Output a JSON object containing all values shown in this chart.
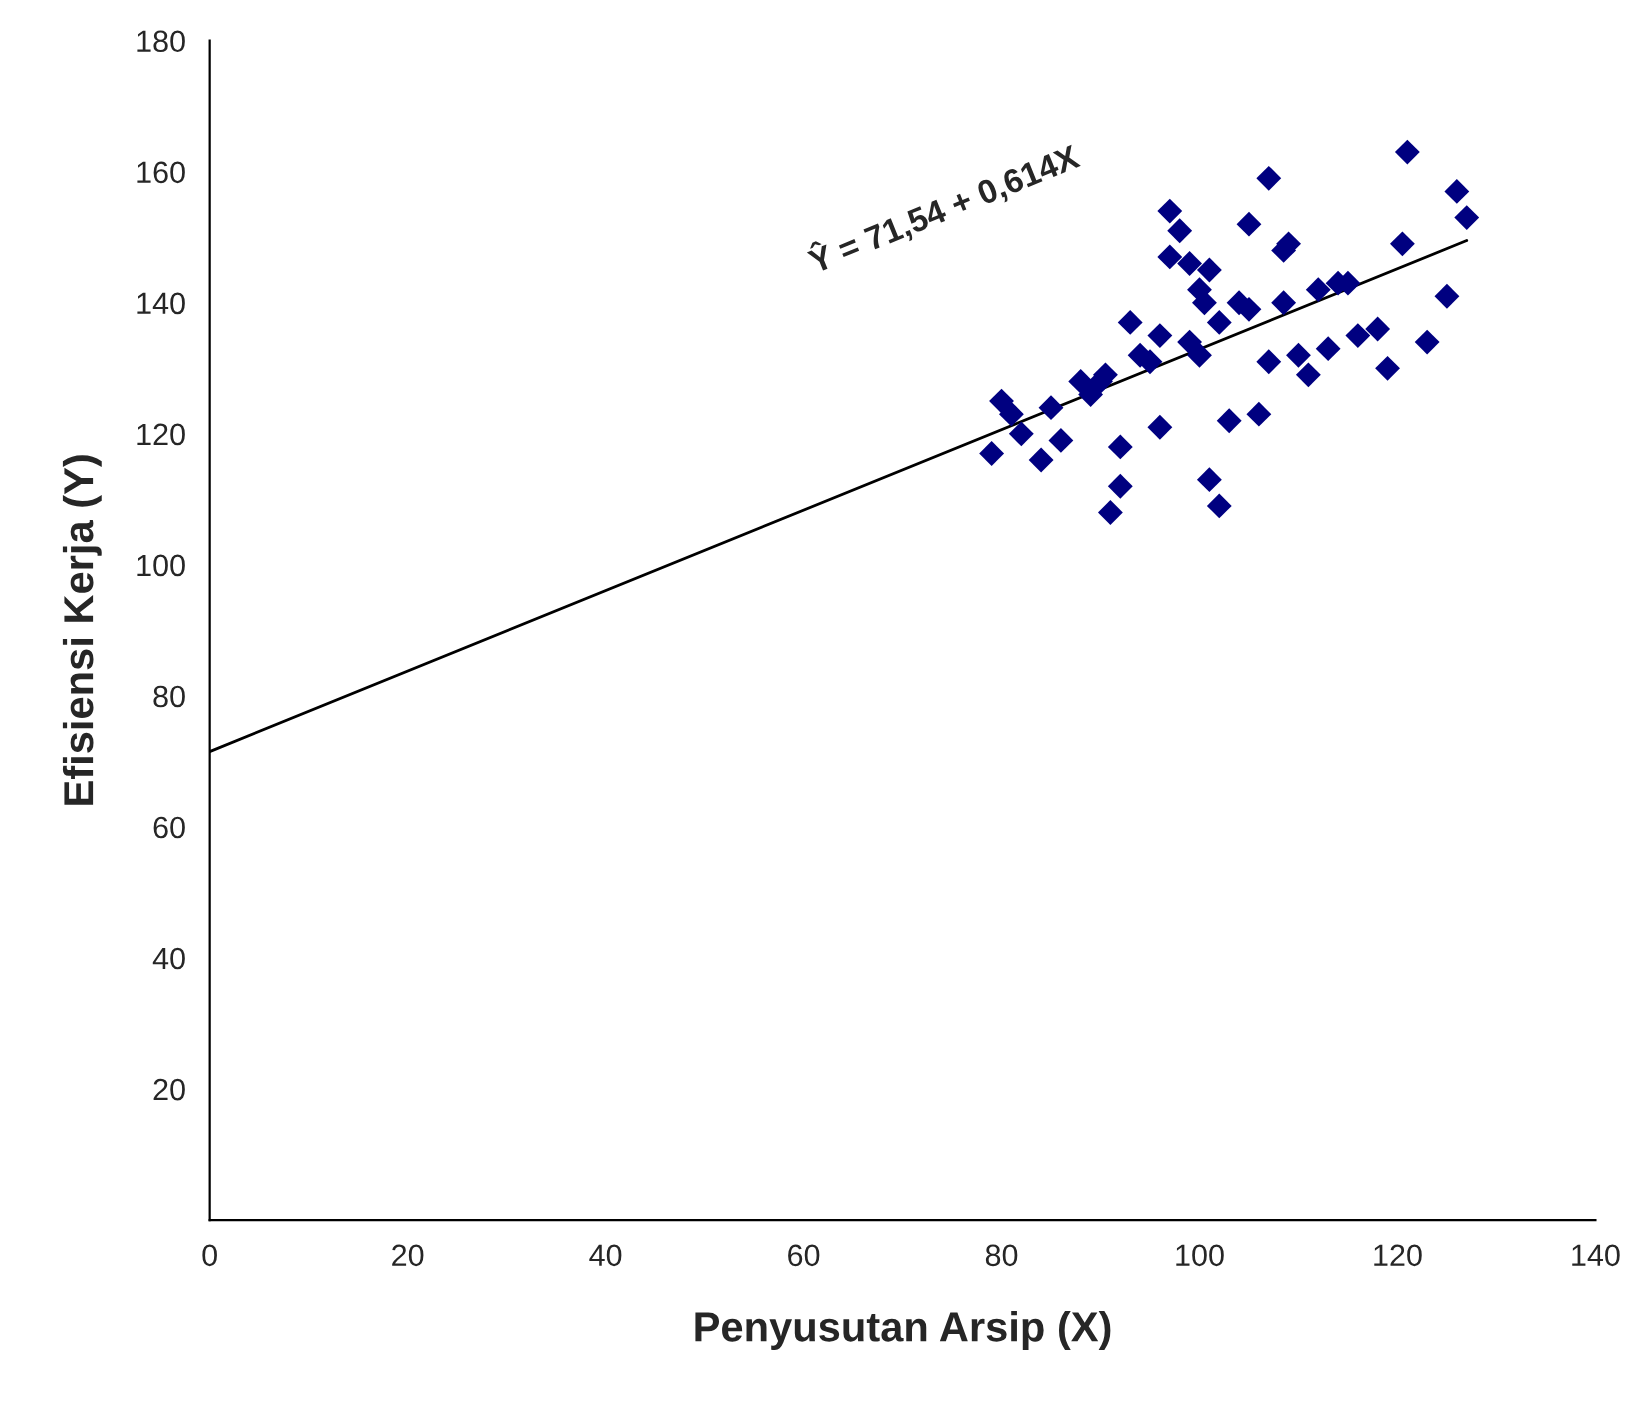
{
  "chart_data": {
    "type": "scatter",
    "xlabel": "Penyusutan Arsip (X)",
    "ylabel": "Efisiensi Kerja (Y)",
    "xlim": [
      0,
      140
    ],
    "ylim": [
      0,
      180
    ],
    "xticks": [
      0,
      20,
      40,
      60,
      80,
      100,
      120,
      140
    ],
    "yticks": [
      20,
      40,
      60,
      80,
      100,
      120,
      140,
      160,
      180
    ],
    "grid": false,
    "legend": false,
    "marker": "diamond",
    "series": [
      {
        "color": "#000080",
        "x": [
          79,
          80,
          81,
          82,
          84,
          85,
          86,
          88,
          89,
          90,
          90.5,
          91,
          92,
          92,
          93,
          94,
          95,
          96,
          96,
          97,
          97,
          98,
          99,
          100,
          100.5,
          101,
          99,
          100,
          101,
          102,
          102,
          103,
          104,
          105,
          105,
          106,
          107,
          107,
          108.5,
          109,
          108.5,
          110,
          111,
          112,
          113,
          114,
          115,
          116,
          118,
          119,
          120.5,
          121,
          123,
          125,
          126,
          127
        ],
        "values": [
          117,
          125,
          123,
          120,
          116,
          124,
          119,
          128,
          126,
          128,
          129,
          108,
          118,
          112,
          137,
          132,
          131,
          135,
          121,
          147,
          154,
          151,
          146,
          142,
          140,
          145,
          134,
          132,
          113,
          109,
          137,
          122,
          140,
          152,
          139,
          123,
          159,
          131,
          148,
          149,
          140,
          132,
          129,
          142,
          133,
          143,
          143,
          135,
          136,
          130,
          149,
          163,
          134,
          141,
          157,
          153
        ]
      },
      {
        "type": "line",
        "color": "#000000",
        "x": [
          0,
          127
        ],
        "values": [
          71.5,
          149.5
        ],
        "marker": "none",
        "line_style": "solid"
      }
    ],
    "annotations": [
      "Ŷ = 71,54 + 0,614X"
    ]
  }
}
